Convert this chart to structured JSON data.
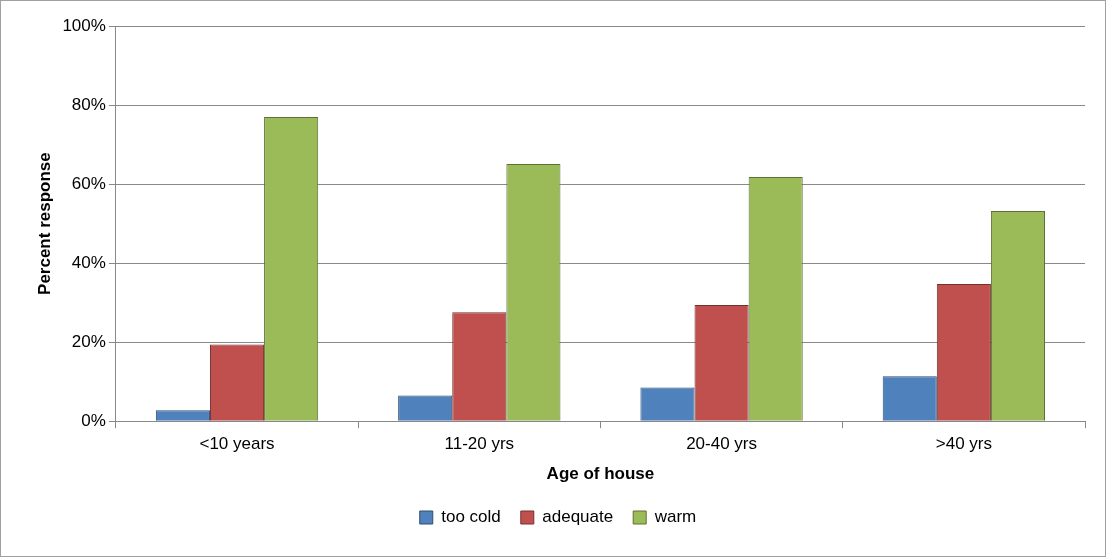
{
  "chart_data": {
    "type": "bar",
    "xlabel": "Age of house",
    "ylabel": "Percent response",
    "categories": [
      "<10 years",
      "11-20 yrs",
      "20-40 yrs",
      ">40 yrs"
    ],
    "series": [
      {
        "name": "too cold",
        "color": "#4f81bd",
        "values": [
          2.8,
          6.5,
          8.5,
          11.4
        ]
      },
      {
        "name": "adequate",
        "color": "#c0504d",
        "values": [
          19.4,
          27.6,
          29.4,
          34.7
        ]
      },
      {
        "name": "warm",
        "color": "#9bbb59",
        "values": [
          77,
          65.1,
          61.8,
          53.2
        ]
      }
    ],
    "ylim": [
      0,
      100
    ],
    "yticks": [
      {
        "value": 0,
        "label": "0%"
      },
      {
        "value": 20,
        "label": "20%"
      },
      {
        "value": 40,
        "label": "40%"
      },
      {
        "value": 60,
        "label": "60%"
      },
      {
        "value": 80,
        "label": "80%"
      },
      {
        "value": 100,
        "label": "100%"
      }
    ],
    "grid": "y",
    "legend": "bottom"
  }
}
